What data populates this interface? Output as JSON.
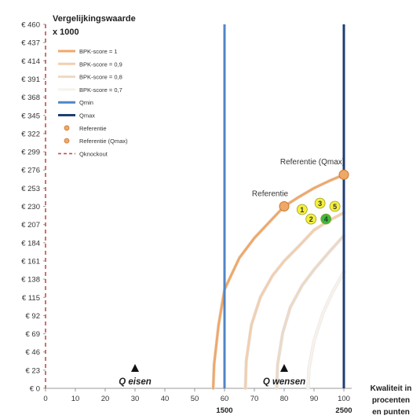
{
  "chart_data": {
    "type": "line",
    "title_line1": "Vergelijkingswaarde",
    "title_line2": "x 1000",
    "xlabel_lines": [
      "Kwaliteit in",
      "procenten",
      "en punten"
    ],
    "xlim": [
      0,
      100
    ],
    "ylim": [
      0,
      460
    ],
    "x_ticks": [
      0,
      10,
      20,
      30,
      40,
      50,
      60,
      70,
      80,
      90,
      100
    ],
    "y_tick_labels": [
      "€ 0",
      "€ 23",
      "€ 46",
      "€ 69",
      "€ 92",
      "€ 115",
      "€ 138",
      "€ 161",
      "€ 184",
      "€ 207",
      "€ 230",
      "€ 253",
      "€ 276",
      "€ 299",
      "€ 322",
      "€ 345",
      "€ 368",
      "€ 391",
      "€ 414",
      "€ 437",
      "€ 460"
    ],
    "extra_x_labels": [
      {
        "x": 60,
        "text": "1500"
      },
      {
        "x": 100,
        "text": "2500"
      }
    ],
    "series": [
      {
        "name": "BPK-score = 1",
        "color": "#f0a868",
        "points": [
          [
            56.2,
            0
          ],
          [
            56.5,
            30
          ],
          [
            58,
            80
          ],
          [
            60,
            125
          ],
          [
            65,
            165
          ],
          [
            70,
            190
          ],
          [
            75,
            210
          ],
          [
            80,
            230
          ],
          [
            85,
            242
          ],
          [
            90,
            253
          ],
          [
            95,
            262
          ],
          [
            100,
            270
          ]
        ]
      },
      {
        "name": "BPK-score = 0,9",
        "color": "#f2cfae",
        "points": [
          [
            67,
            0
          ],
          [
            67.3,
            35
          ],
          [
            69,
            80
          ],
          [
            72,
            115
          ],
          [
            76,
            142
          ],
          [
            80,
            161
          ],
          [
            85,
            180
          ],
          [
            90,
            200
          ],
          [
            95,
            212
          ],
          [
            100,
            222
          ]
        ]
      },
      {
        "name": "BPK-score = 0,8",
        "color": "#ecd9c6",
        "points": [
          [
            77.5,
            0
          ],
          [
            77.8,
            30
          ],
          [
            79.5,
            70
          ],
          [
            82,
            102
          ],
          [
            86,
            130
          ],
          [
            90,
            150
          ],
          [
            95,
            172
          ],
          [
            100,
            193
          ]
        ]
      },
      {
        "name": "BPK-score = 0,7",
        "color": "#f8f2ea",
        "points": [
          [
            88,
            0
          ],
          [
            88.3,
            25
          ],
          [
            90,
            60
          ],
          [
            93,
            95
          ],
          [
            96,
            120
          ],
          [
            100,
            147
          ]
        ]
      }
    ],
    "vlines": [
      {
        "name": "Qmin",
        "x": 60,
        "color": "#4f86c6"
      },
      {
        "name": "Qmax",
        "x": 100,
        "color": "#1f3e73"
      },
      {
        "name": "Qknockout",
        "x": 0,
        "color": "#c0504d"
      }
    ],
    "points": [
      {
        "name": "Referentie",
        "label": "Referentie",
        "x": 80,
        "y": 230
      },
      {
        "name": "Referentie (Qmax)",
        "label": "Referentie (Qmax)",
        "x": 100,
        "y": 270
      }
    ],
    "numbered_markers": [
      {
        "label": "1",
        "x": 86,
        "y": 226,
        "color": "#f5ef3c"
      },
      {
        "label": "2",
        "x": 89,
        "y": 214,
        "color": "#f5ef3c"
      },
      {
        "label": "3",
        "x": 92,
        "y": 234,
        "color": "#f5ef3c"
      },
      {
        "label": "4",
        "x": 94,
        "y": 214,
        "color": "#3cba3c"
      },
      {
        "label": "5",
        "x": 97,
        "y": 230,
        "color": "#f5ef3c"
      }
    ],
    "annotations": [
      {
        "text": "Q eisen",
        "x": 30
      },
      {
        "text": "Q wensen",
        "x": 80
      }
    ],
    "legend": {
      "placement": "top-left",
      "entries": [
        {
          "label": "BPK-score = 1",
          "kind": "line",
          "color": "#f0a868"
        },
        {
          "label": "BPK-score = 0,9",
          "kind": "line",
          "color": "#f2cfae"
        },
        {
          "label": "BPK-score = 0,8",
          "kind": "line",
          "color": "#ecd9c6"
        },
        {
          "label": "BPK-score = 0,7",
          "kind": "line",
          "color": "#f8f2ea"
        },
        {
          "label": "Qmin",
          "kind": "line",
          "color": "#4f86c6"
        },
        {
          "label": "Qmax",
          "kind": "line",
          "color": "#1f3e73"
        },
        {
          "label": "Referentie",
          "kind": "marker",
          "color": "#f0a868"
        },
        {
          "label": "Referentie (Qmax)",
          "kind": "marker",
          "color": "#f0a868"
        },
        {
          "label": "Qknockout",
          "kind": "dash",
          "color": "#c0504d"
        }
      ]
    },
    "grid": false
  }
}
